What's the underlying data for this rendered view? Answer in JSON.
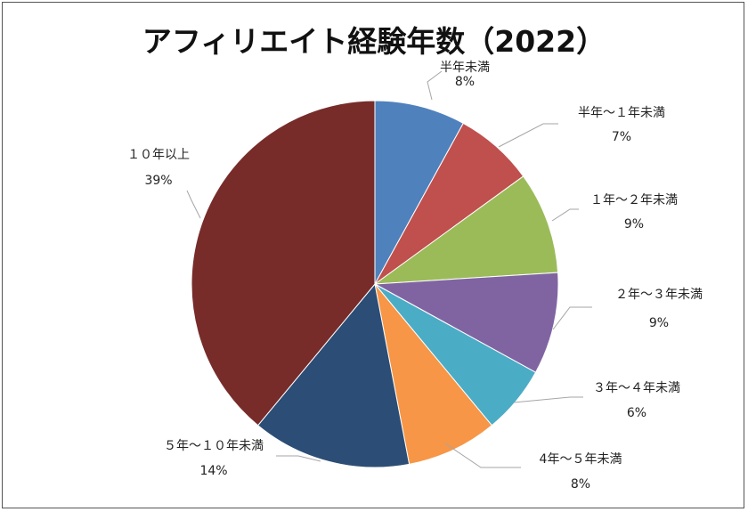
{
  "chart_data": {
    "type": "pie",
    "title": "アフィリエイト経験年数（2022）",
    "slices": [
      {
        "name": "半年未満",
        "value": 8,
        "label": "8%",
        "color": "#4F81BD"
      },
      {
        "name": "半年～１年未満",
        "value": 7,
        "label": "7%",
        "color": "#C0504D"
      },
      {
        "name": "１年～２年未満",
        "value": 9,
        "label": "9%",
        "color": "#9BBB59"
      },
      {
        "name": "２年～３年未満",
        "value": 9,
        "label": "9%",
        "color": "#8064A2"
      },
      {
        "name": "３年～４年未満",
        "value": 6,
        "label": "6%",
        "color": "#4BACC6"
      },
      {
        "name": "4年～５年未満",
        "value": 8,
        "label": "8%",
        "color": "#F79646"
      },
      {
        "name": "５年～１０年未満",
        "value": 14,
        "label": "14%",
        "color": "#2C4D75"
      },
      {
        "name": "１０年以上",
        "value": 39,
        "label": "39%",
        "color": "#772C2A"
      }
    ]
  }
}
